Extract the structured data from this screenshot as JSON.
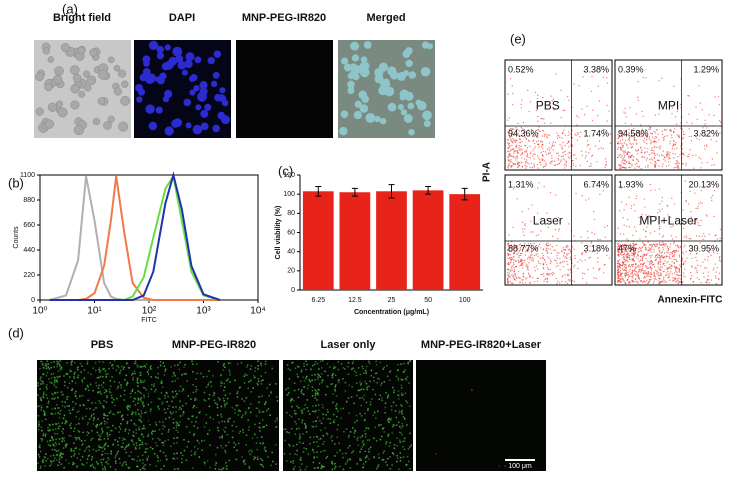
{
  "panel_labels": [
    "(a)",
    "(b)",
    "(c)",
    "(d)",
    "(e)"
  ],
  "panel_a": {
    "titles": [
      "Bright field",
      "DAPI",
      "MNP-PEG-IR820",
      "Merged"
    ]
  },
  "chart_data": [
    {
      "type": "line",
      "x_label": "FITC",
      "y_label": "Counts",
      "log_x": true,
      "xlim": [
        1,
        10000
      ],
      "xticks": [
        {
          "value": 1,
          "label": "10⁰"
        },
        {
          "value": 10,
          "label": "10¹"
        },
        {
          "value": 100,
          "label": "10²"
        },
        {
          "value": 1000,
          "label": "10³"
        },
        {
          "value": 10000,
          "label": "10⁴"
        }
      ],
      "ylim": [
        0,
        1100
      ],
      "yticks": [
        0,
        220,
        440,
        660,
        880,
        1100
      ],
      "x": [
        1.5,
        3,
        5,
        7,
        10,
        15,
        20,
        25,
        35,
        50,
        80,
        120,
        200,
        280,
        400,
        600,
        1000,
        2000
      ],
      "series": [
        {
          "color": "#b0b0b0",
          "values": [
            0,
            40,
            350,
            1090,
            700,
            150,
            30,
            10,
            0,
            0,
            0,
            0,
            0,
            0,
            0,
            0,
            0,
            0
          ]
        },
        {
          "color": "#f07a4a",
          "values": [
            0,
            0,
            0,
            10,
            60,
            300,
            700,
            1090,
            600,
            150,
            20,
            0,
            0,
            0,
            0,
            0,
            0,
            0
          ]
        },
        {
          "color": "#66dd44",
          "values": [
            0,
            0,
            0,
            0,
            0,
            0,
            0,
            0,
            0,
            30,
            200,
            550,
            980,
            1090,
            700,
            250,
            40,
            0
          ]
        },
        {
          "color": "#2233aa",
          "values": [
            0,
            0,
            0,
            0,
            0,
            0,
            0,
            0,
            0,
            0,
            40,
            250,
            850,
            1100,
            800,
            300,
            50,
            0
          ]
        }
      ]
    },
    {
      "type": "bar",
      "x_label": "Concentration (μg/mL)",
      "y_label": "Cell viability (%)",
      "color": "#e8241a",
      "categories": [
        "6.25",
        "12.5",
        "25",
        "50",
        "100"
      ],
      "values": [
        103,
        102,
        103,
        104,
        100
      ],
      "errors": [
        5,
        4,
        7,
        4,
        6
      ],
      "ylim": [
        0,
        120
      ],
      "yticks": [
        0,
        20,
        40,
        60,
        80,
        100,
        120
      ]
    }
  ],
  "panel_d": {
    "titles": [
      "PBS",
      "MNP-PEG-IR820",
      "Laser only",
      "MNP-PEG-IR820+Laser"
    ],
    "scale_bar": "100 μm"
  },
  "panel_e": {
    "x_label": "Annexin-FITC",
    "y_label": "PI-A",
    "plots": [
      {
        "name": "PBS",
        "quadrants": [
          "0.52%",
          "3.38%",
          "94.36%",
          "1.74%"
        ]
      },
      {
        "name": "MPI",
        "quadrants": [
          "0.39%",
          "1.29%",
          "94.58%",
          "3.82%"
        ]
      },
      {
        "name": "Laser",
        "quadrants": [
          "1.31%",
          "6.74%",
          "88.77%",
          "3.18%"
        ]
      },
      {
        "name": "MPI+Laser",
        "quadrants": [
          "1.93%",
          "20.13%",
          "47%",
          "30.95%"
        ]
      }
    ]
  }
}
